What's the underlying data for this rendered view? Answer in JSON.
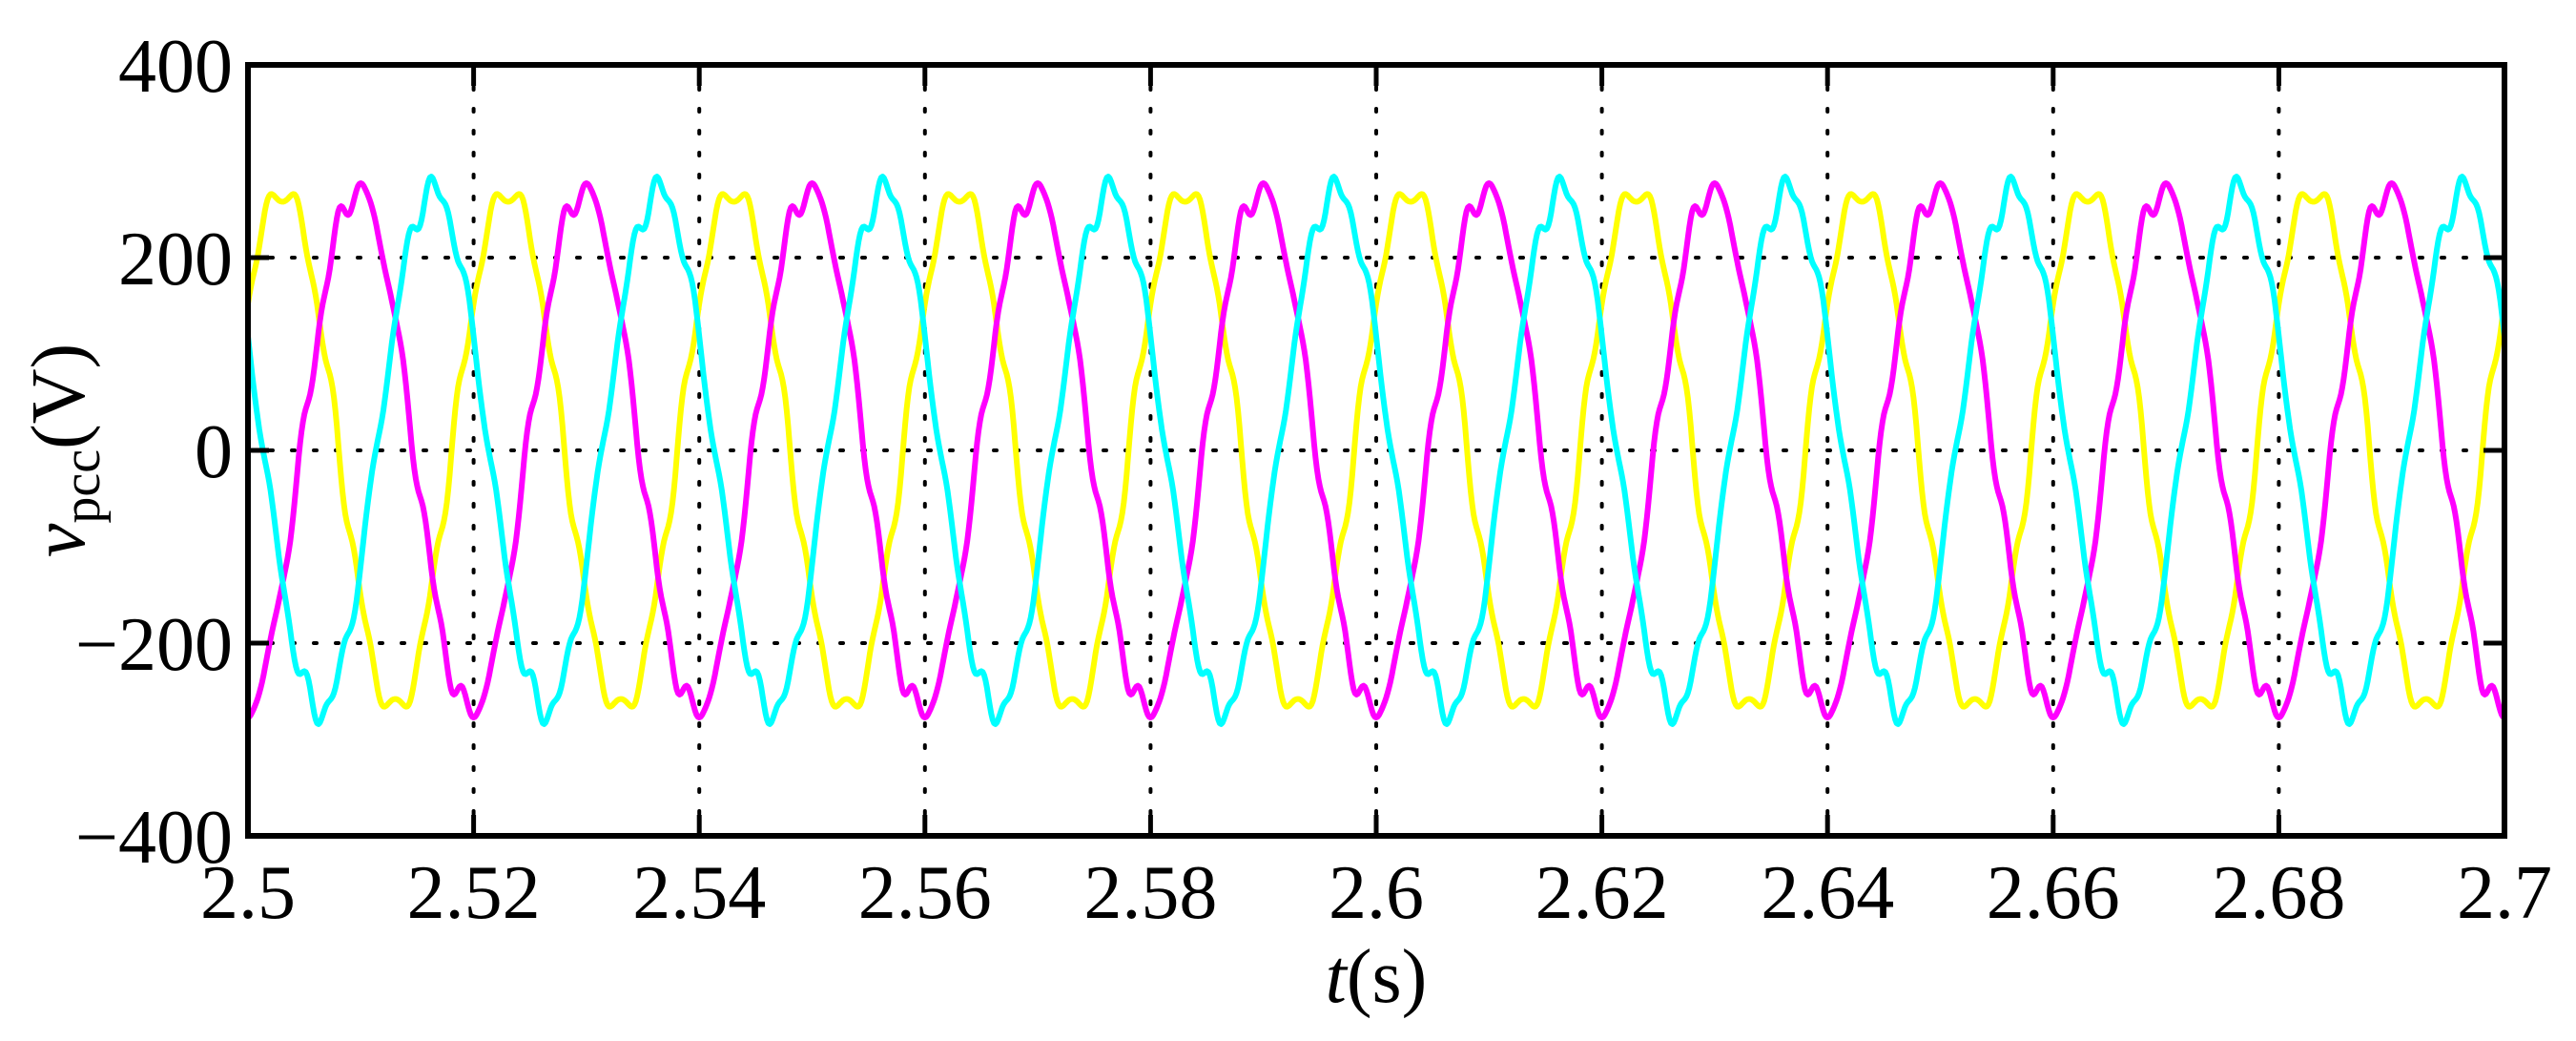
{
  "chart_data": {
    "type": "line",
    "title": "",
    "xlabel": {
      "italic": "t",
      "rest": "(s)"
    },
    "ylabel": {
      "symbol": "v",
      "subscript": "pcc",
      "unit": "(V)"
    },
    "xlim": [
      2.5,
      2.7
    ],
    "ylim": [
      -400,
      400
    ],
    "xticks": [
      2.5,
      2.52,
      2.54,
      2.56,
      2.58,
      2.6,
      2.62,
      2.64,
      2.66,
      2.68,
      2.7
    ],
    "xtick_labels": [
      "2.5",
      "2.52",
      "2.54",
      "2.56",
      "2.58",
      "2.6",
      "2.62",
      "2.64",
      "2.66",
      "2.68",
      "2.7"
    ],
    "yticks": [
      -400,
      -200,
      0,
      200,
      400
    ],
    "ytick_labels": [
      "−400",
      "−200",
      "0",
      "200",
      "400"
    ],
    "grid": true,
    "grid_style": "dotted",
    "legend": "none",
    "frequency_hz": 50,
    "series": [
      {
        "color": "#ffff00",
        "amplitude": 270,
        "phase_deg": 35,
        "ripple": 10
      },
      {
        "color": "#ff00ff",
        "amplitude": 270,
        "phase_deg": -85,
        "ripple": 10
      },
      {
        "color": "#00ffff",
        "amplitude": 270,
        "phase_deg": 155,
        "ripple": 10
      }
    ]
  }
}
